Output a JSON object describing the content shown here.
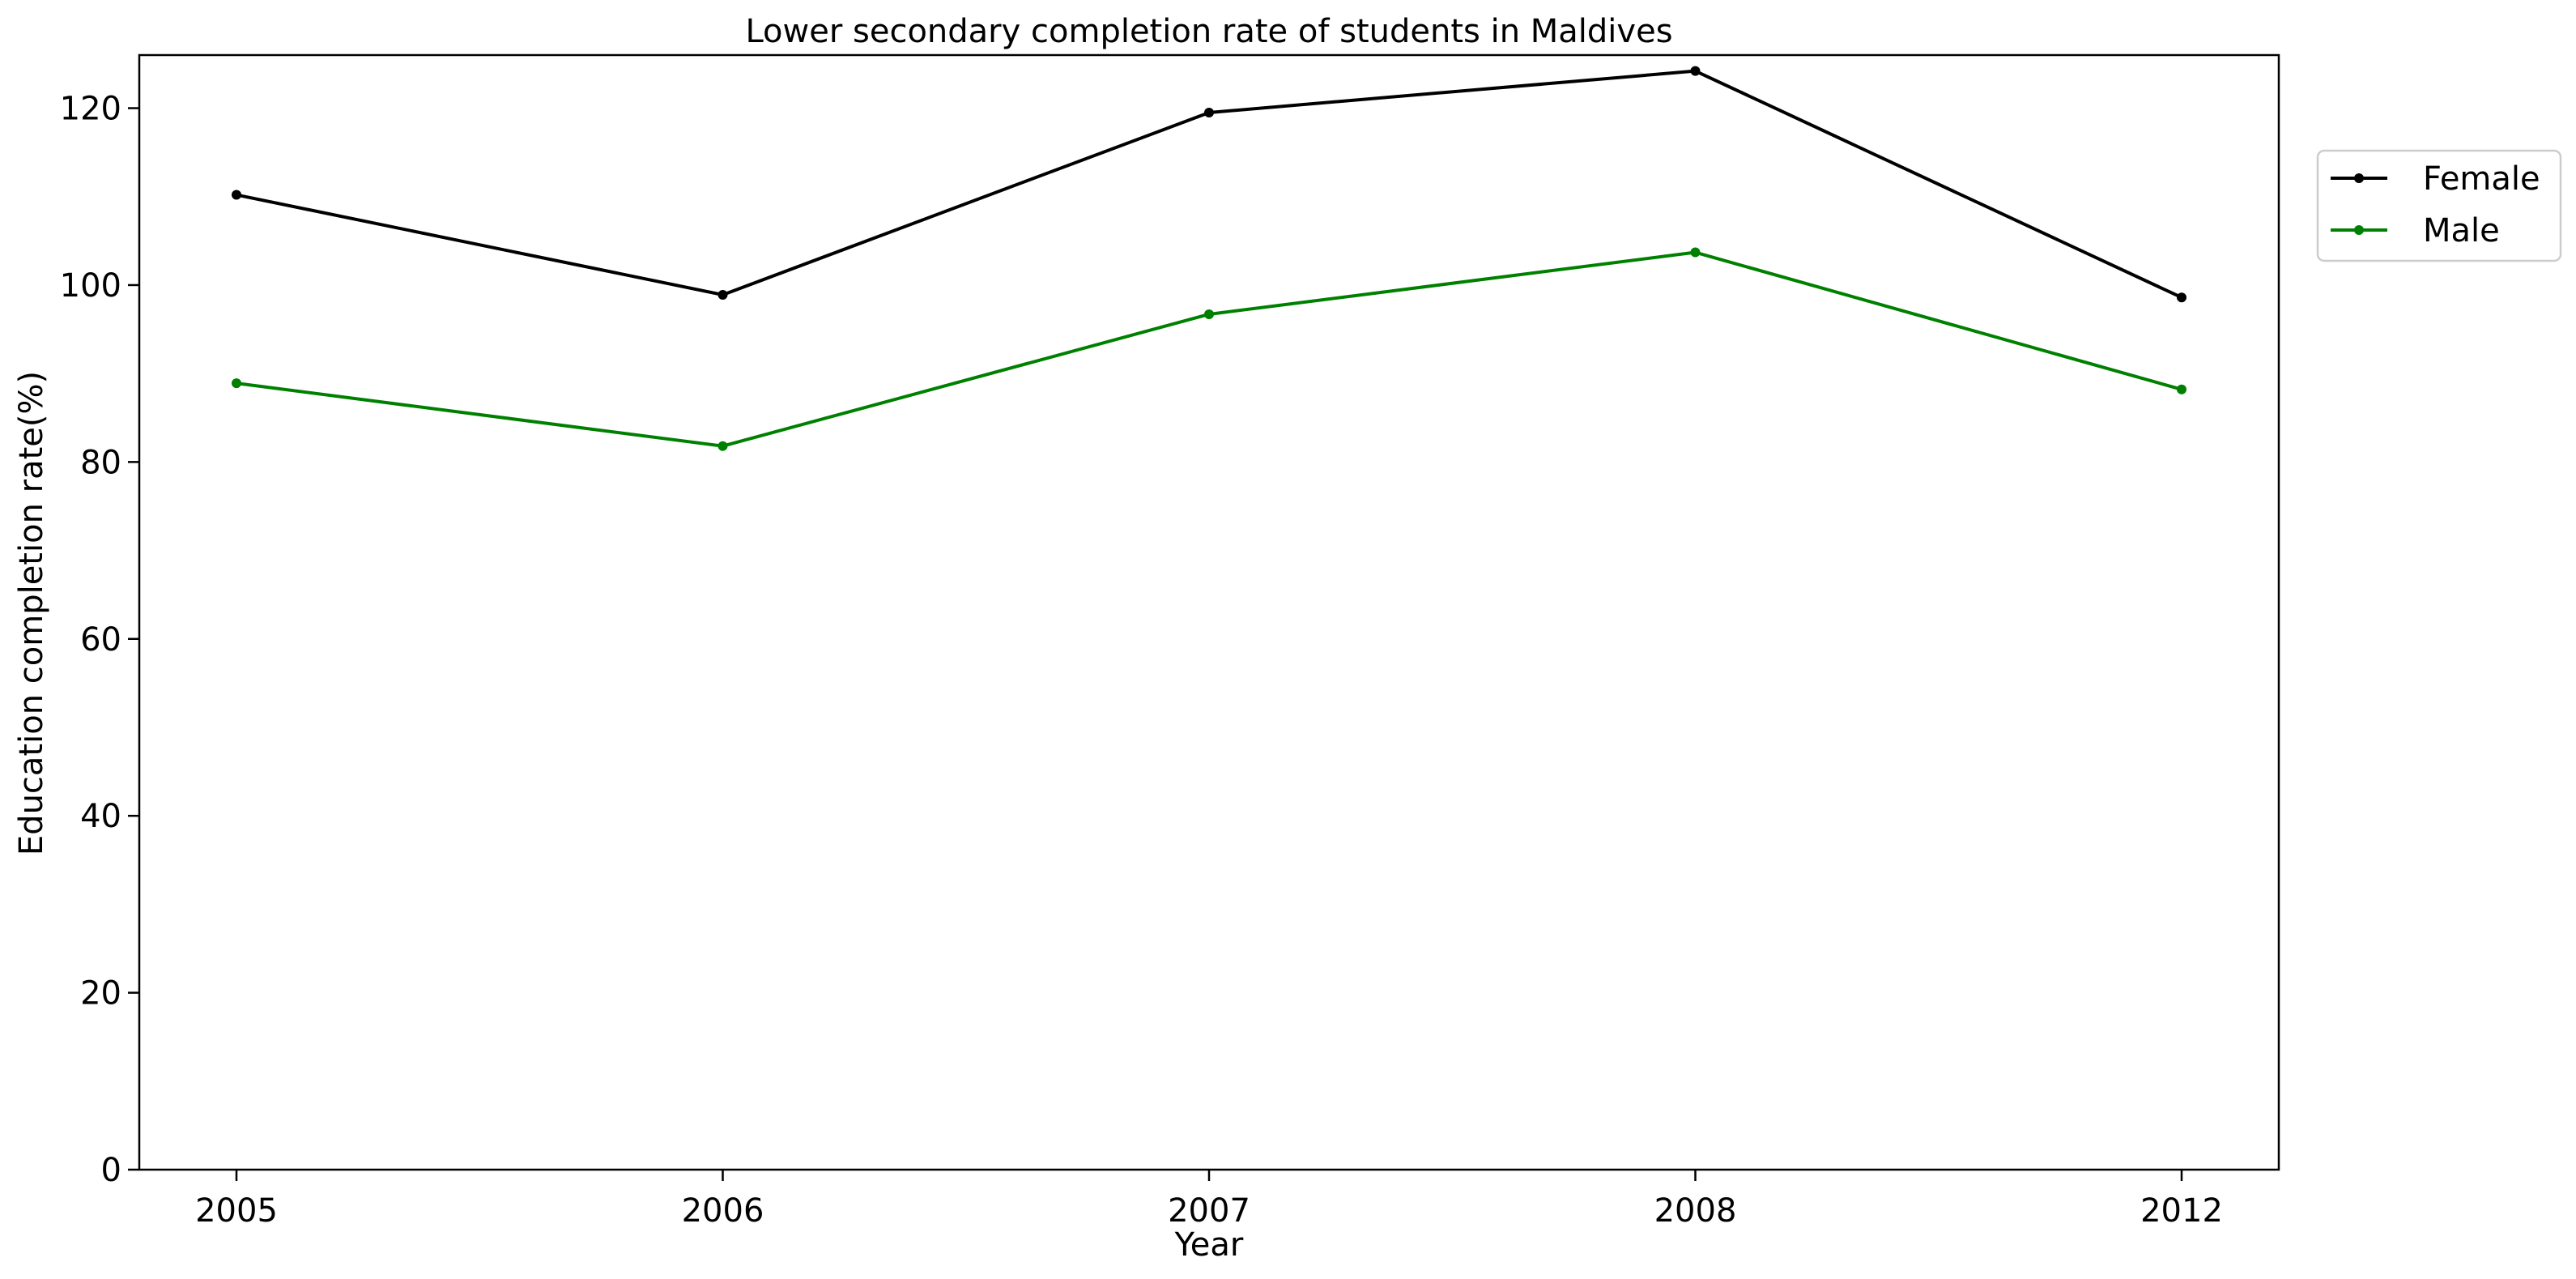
{
  "chart_data": {
    "type": "line",
    "title": "Lower secondary completion rate of students in Maldives",
    "xlabel": "Year",
    "ylabel": "Education completion rate(%)",
    "categories": [
      "2005",
      "2006",
      "2007",
      "2008",
      "2012"
    ],
    "ylim": [
      0,
      126
    ],
    "yticks": [
      0,
      20,
      40,
      60,
      80,
      100,
      120
    ],
    "grid": false,
    "legend_position": "outside top-right",
    "series": [
      {
        "name": "Female",
        "color": "#000000",
        "values": [
          110.2,
          98.9,
          119.5,
          124.2,
          98.6
        ]
      },
      {
        "name": "Male",
        "color": "#008000",
        "values": [
          88.9,
          81.8,
          96.7,
          103.7,
          88.2
        ]
      }
    ]
  }
}
